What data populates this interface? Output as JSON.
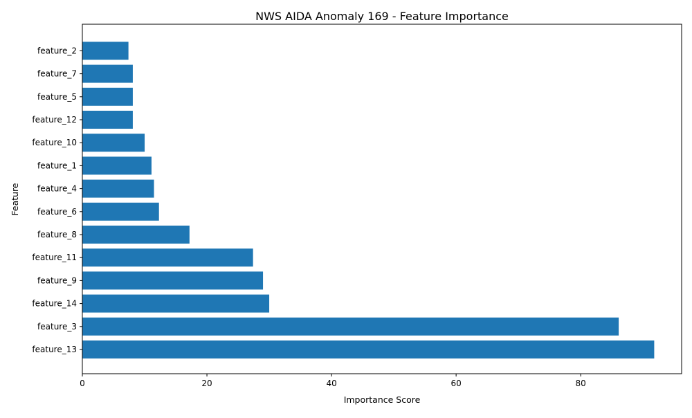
{
  "chart_data": {
    "type": "bar",
    "orientation": "horizontal",
    "title": "NWS AIDA Anomaly 169 - Feature Importance",
    "xlabel": "Importance Score",
    "ylabel": "Feature",
    "categories": [
      "feature_13",
      "feature_3",
      "feature_14",
      "feature_9",
      "feature_11",
      "feature_8",
      "feature_6",
      "feature_4",
      "feature_1",
      "feature_10",
      "feature_12",
      "feature_5",
      "feature_7",
      "feature_2"
    ],
    "values": [
      91.8,
      86.1,
      30.0,
      29.0,
      27.4,
      17.2,
      12.3,
      11.5,
      11.1,
      10.0,
      8.1,
      8.1,
      8.1,
      7.4
    ],
    "xlim": [
      0,
      96.2
    ],
    "xticks": [
      0,
      20,
      40,
      60,
      80
    ],
    "bar_color": "#1f77b4",
    "grid": false
  }
}
